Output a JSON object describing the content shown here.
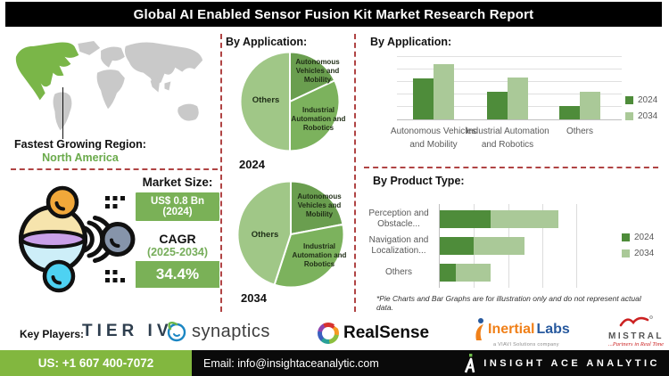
{
  "header": {
    "title": "Global AI Enabled Sensor Fusion Kit Market Research Report"
  },
  "map_section": {
    "region_label": "Fastest Growing Region:",
    "region_value": "North America"
  },
  "market_section": {
    "size_label": "Market Size:",
    "size_value": "US$ 0.8 Bn",
    "size_year": "(2024)",
    "cagr_label": "CAGR",
    "cagr_period": "(2025-2034)",
    "cagr_value": "34.4%"
  },
  "pie_section": {
    "header": "By Application:",
    "year_1": "2024",
    "year_2": "2034"
  },
  "bar_section": {
    "header": "By Application:"
  },
  "product_section": {
    "header": "By Product Type:",
    "footnote": "*Pie Charts and Bar Graphs are for illustration only and do not represent actual data."
  },
  "key_players": {
    "label": "Key Players:",
    "tier": "TIER IV",
    "synaptics": "synaptics",
    "realsense": "RealSense",
    "inertial_1": "Inertial",
    "inertial_2": "Labs",
    "inertial_sub": "a VIAVI Solutions company",
    "mistral": "MISTRAL",
    "mistral_tag": "...Partners in Real Time"
  },
  "footer": {
    "phone": "US: +1 607 400-7072",
    "email": "Email: info@insightaceanalytic.com",
    "brand": "INSIGHT ACE ANALYTIC"
  },
  "colors": {
    "accent_green": "#7ab157",
    "map_green": "#7ab648",
    "dash_red": "#b04444",
    "footer_green": "#82b73f",
    "bar_2024": "#4e8c3a",
    "bar_2034": "#aac998"
  },
  "chart_data": [
    {
      "type": "pie",
      "title": "By Application: 2024",
      "labels": [
        "Autonomous Vehicles and Mobility",
        "Industrial Automation and Robotics",
        "Others"
      ],
      "values": [
        18,
        32,
        50
      ],
      "colors": [
        "#6a9e4f",
        "#7cb25d",
        "#a0c787"
      ]
    },
    {
      "type": "pie",
      "title": "By Application: 2034",
      "labels": [
        "Autonomous Vehicles and Mobility",
        "Industrial Automation and Robotics",
        "Others"
      ],
      "values": [
        22,
        33,
        45
      ],
      "colors": [
        "#6a9e4f",
        "#7cb25d",
        "#a0c787"
      ]
    },
    {
      "type": "bar",
      "title": "By Application:",
      "categories": [
        "Autonomous Vehicles and Mobility",
        "Industrial Automation and Robotics",
        "Others"
      ],
      "series": [
        {
          "name": "2024",
          "color": "#4e8c3a",
          "values": [
            66,
            45,
            22
          ]
        },
        {
          "name": "2034",
          "color": "#aac998",
          "values": [
            88,
            67,
            45
          ]
        }
      ],
      "ylim": [
        0,
        100
      ],
      "grid": true,
      "legend_position": "right"
    },
    {
      "type": "bar",
      "orientation": "horizontal",
      "stacked": true,
      "title": "By Product Type:",
      "categories": [
        "Perception and Obstacle...",
        "Navigation and Localization...",
        "Others"
      ],
      "series": [
        {
          "name": "2024",
          "color": "#4e8c3a",
          "values": [
            37,
            25,
            12
          ]
        },
        {
          "name": "2034",
          "color": "#aac998",
          "values": [
            50,
            37,
            25
          ]
        }
      ],
      "xlim": [
        0,
        100
      ],
      "grid": true,
      "legend_position": "right"
    }
  ]
}
